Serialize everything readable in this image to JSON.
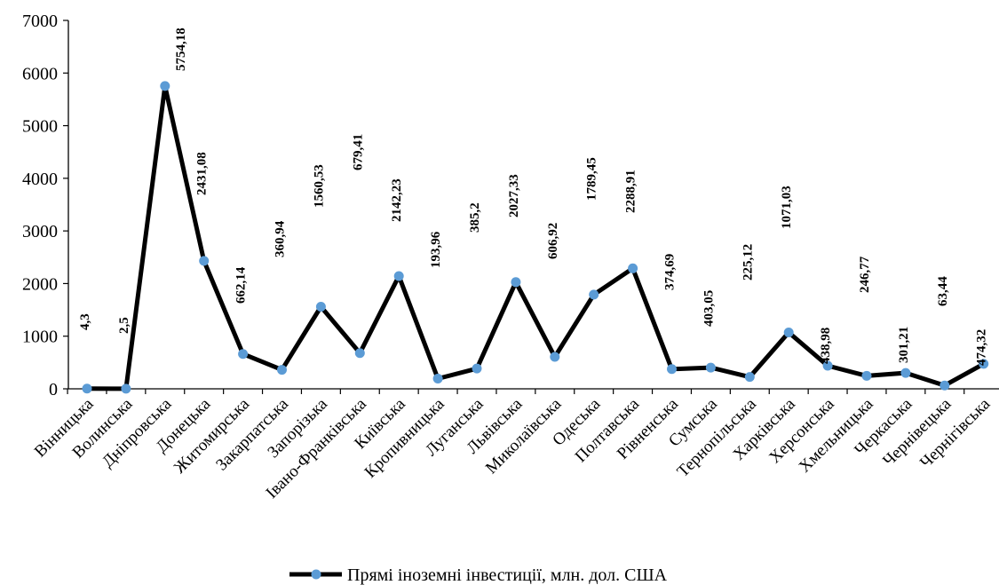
{
  "chart_data": {
    "type": "line",
    "title": "",
    "xlabel": "",
    "ylabel": "",
    "ylim": [
      0,
      7000
    ],
    "yticks": [
      0,
      1000,
      2000,
      3000,
      4000,
      5000,
      6000,
      7000
    ],
    "grid": false,
    "legend_position": "bottom",
    "categories": [
      "Вінницька",
      "Волинська",
      "Дніпровська",
      "Донецька",
      "Житомирська",
      "Закарпатська",
      "Запорізька",
      "Івано-Франківська",
      "Київська",
      "Кропивницька",
      "Луганська",
      "Львівська",
      "Миколаївська",
      "Одеська",
      "Полтавська",
      "Рівненська",
      "Сумська",
      "Тернопільська",
      "Харківська",
      "Херсонська",
      "Хмельницька",
      "Черкаська",
      "Чернівецька",
      "Чернігівська"
    ],
    "series": [
      {
        "name": "Прямі іноземні інвестиції, млн. дол. США",
        "color": "#000000",
        "marker_color": "#5B9BD5",
        "values": [
          4.3,
          2.5,
          5754.18,
          2431.08,
          662.14,
          360.94,
          1560.53,
          679.41,
          2142.23,
          193.96,
          385.2,
          2027.33,
          606.92,
          1789.45,
          2288.91,
          374.69,
          403.05,
          225.12,
          1071.03,
          438.98,
          246.77,
          301.21,
          63.44,
          474.32
        ],
        "data_labels": [
          "4,3",
          "2,5",
          "5754,18",
          "2431,08",
          "662,14",
          "360,94",
          "1560,53",
          "679,41",
          "2142,23",
          "193,96",
          "385,2",
          "2027,33",
          "606,92",
          "1789,45",
          "2288,91",
          "374,69",
          "403,05",
          "225,12",
          "1071,03",
          "438,98",
          "246,77",
          "301,21",
          "63,44",
          "474,32"
        ]
      }
    ]
  }
}
